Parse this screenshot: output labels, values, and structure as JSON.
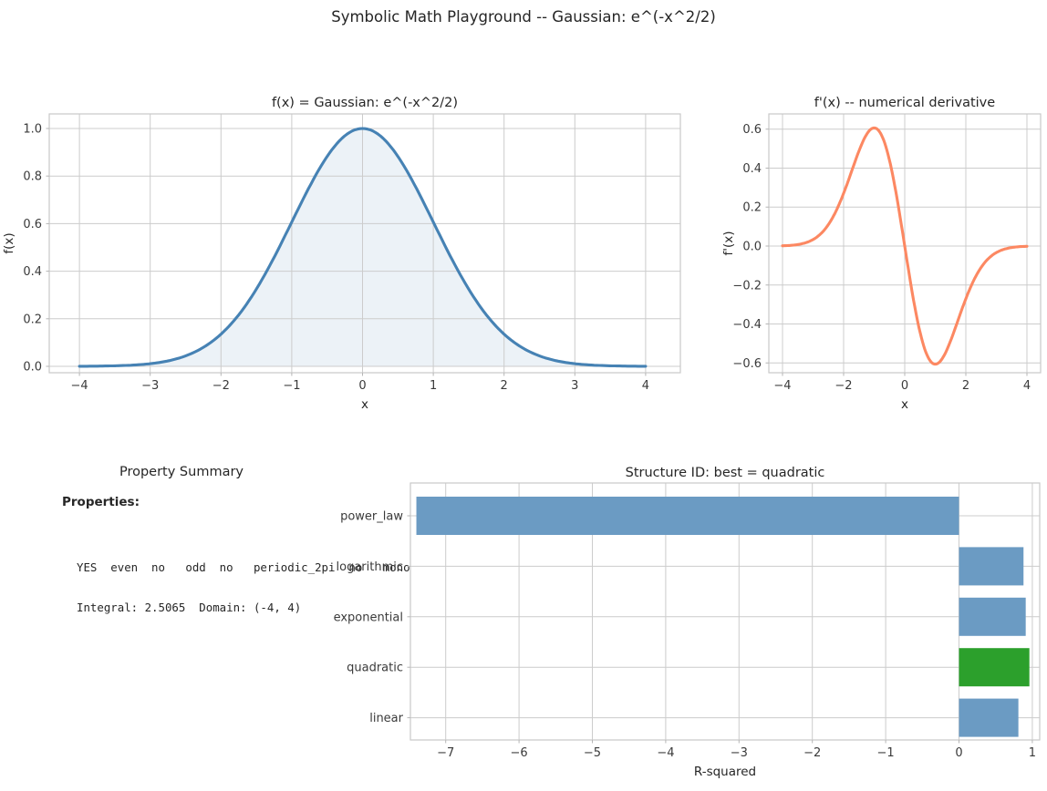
{
  "figure": {
    "title": "Symbolic Math Playground -- Gaussian: e^(-x^2/2)",
    "background": "#ffffff",
    "text_color": "#262626",
    "tick_label_color": "#3a3a3a",
    "grid_color": "#cccccc",
    "spine_color": "#c9c9c9",
    "grid": true
  },
  "panels": {
    "property_summary": {
      "title": "Property Summary",
      "heading": "Properties:",
      "lines": [
        "YES  even  no   odd  no   periodic_2pi  no   mono",
        "Integral: 2.5065  Domain: (-4, 4)"
      ],
      "integral": 2.5065,
      "domain": "(-4, 4)"
    }
  },
  "chart_data": [
    {
      "id": "fx",
      "type": "line",
      "title": "f(x) = Gaussian: e^(-x^2/2)",
      "xlabel": "x",
      "ylabel": "f(x)",
      "fn": "gaussian",
      "function": "exp(-x^2/2)",
      "x_range": [
        -4,
        4
      ],
      "xlim": [
        -4.43,
        4.49
      ],
      "ylim": [
        -0.027,
        1.06
      ],
      "xticks": {
        "values": [
          -4,
          -3,
          -2,
          -1,
          0,
          1,
          2,
          3,
          4
        ],
        "labels": [
          "−4",
          "−3",
          "−2",
          "−1",
          "0",
          "1",
          "2",
          "3",
          "4"
        ]
      },
      "yticks": {
        "values": [
          0,
          0.2,
          0.4,
          0.6,
          0.8,
          1.0
        ],
        "labels": [
          "0.0",
          "0.2",
          "0.4",
          "0.6",
          "0.8",
          "1.0"
        ]
      },
      "line_color": "#4682B4",
      "fill": true,
      "fill_color": "#ECF2F7",
      "grid": true,
      "samples": {
        "x": [
          -4,
          -3.5,
          -3,
          -2.5,
          -2,
          -1.5,
          -1,
          -0.5,
          0,
          0.5,
          1,
          1.5,
          2,
          2.5,
          3,
          3.5,
          4
        ],
        "y": [
          0.0003,
          0.0022,
          0.0111,
          0.0439,
          0.1353,
          0.3247,
          0.6065,
          0.8825,
          1.0,
          0.8825,
          0.6065,
          0.3247,
          0.1353,
          0.0439,
          0.0111,
          0.0022,
          0.0003
        ]
      }
    },
    {
      "id": "dfx",
      "type": "line",
      "title": "f'(x) -- numerical derivative",
      "xlabel": "x",
      "ylabel": "f'(x)",
      "fn": "gaussian_derivative",
      "function": "-x*exp(-x^2/2)",
      "x_range": [
        -4,
        4
      ],
      "xlim": [
        -4.45,
        4.45
      ],
      "ylim": [
        -0.678,
        0.678
      ],
      "xticks": {
        "values": [
          -4,
          -2,
          0,
          2,
          4
        ],
        "labels": [
          "−4",
          "−2",
          "0",
          "2",
          "4"
        ]
      },
      "yticks": {
        "values": [
          -0.6,
          -0.4,
          -0.2,
          0,
          0.2,
          0.4,
          0.6
        ],
        "labels": [
          "−0.6",
          "−0.4",
          "−0.2",
          "0.0",
          "0.2",
          "0.4",
          "0.6"
        ]
      },
      "line_color": "#FC8862",
      "fill": false,
      "grid": true,
      "samples": {
        "x": [
          -4,
          -3.5,
          -3,
          -2.5,
          -2,
          -1.5,
          -1,
          -0.5,
          0,
          0.5,
          1,
          1.5,
          2,
          2.5,
          3,
          3.5,
          4
        ],
        "y": [
          0.0013,
          0.0077,
          0.0333,
          0.1098,
          0.2707,
          0.487,
          0.6065,
          0.4412,
          0,
          -0.4412,
          -0.6065,
          -0.487,
          -0.2707,
          -0.1098,
          -0.0333,
          -0.0077,
          -0.0013
        ]
      }
    },
    {
      "id": "structure",
      "type": "bar",
      "orientation": "horizontal",
      "title": "Structure ID: best = quadratic",
      "xlabel": "R-squared",
      "categories": [
        "power_law",
        "logarithmic",
        "exponential",
        "quadratic",
        "linear"
      ],
      "values": [
        -7.4,
        0.88,
        0.91,
        0.96,
        0.81
      ],
      "best": "quadratic",
      "bar_color": "#6B9BC3",
      "best_color": "#2CA02C",
      "xlim": [
        -7.48,
        1.1
      ],
      "xticks": {
        "values": [
          -7,
          -6,
          -5,
          -4,
          -3,
          -2,
          -1,
          0,
          1
        ],
        "labels": [
          "−7",
          "−6",
          "−5",
          "−4",
          "−3",
          "−2",
          "−1",
          "0",
          "1"
        ]
      },
      "grid": true,
      "legend": "none"
    }
  ]
}
